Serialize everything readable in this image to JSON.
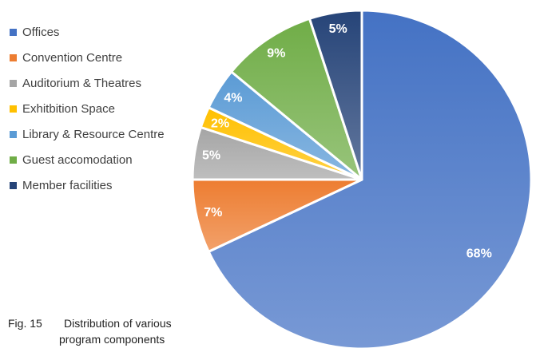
{
  "chart_data": {
    "type": "pie",
    "categories": [
      "Offices",
      "Convention Centre",
      "Auditorium & Theatres",
      "Exhitbition Space",
      "Library & Resource Centre",
      "Guest accomodation",
      "Member facilities"
    ],
    "values": [
      68,
      7,
      5,
      2,
      4,
      9,
      5
    ],
    "data_labels": [
      "68%",
      "7%",
      "5%",
      "2%",
      "4%",
      "9%",
      "5%"
    ],
    "colors": [
      "#4472C4",
      "#ED7D31",
      "#A5A5A5",
      "#FFC000",
      "#5B9BD5",
      "#70AD47",
      "#264478"
    ],
    "start": "12 o'clock",
    "direction": "clockwise",
    "legend": "left"
  },
  "caption": {
    "number": "Fig. 15",
    "line1": "Distribution of various",
    "line2": "program components"
  }
}
